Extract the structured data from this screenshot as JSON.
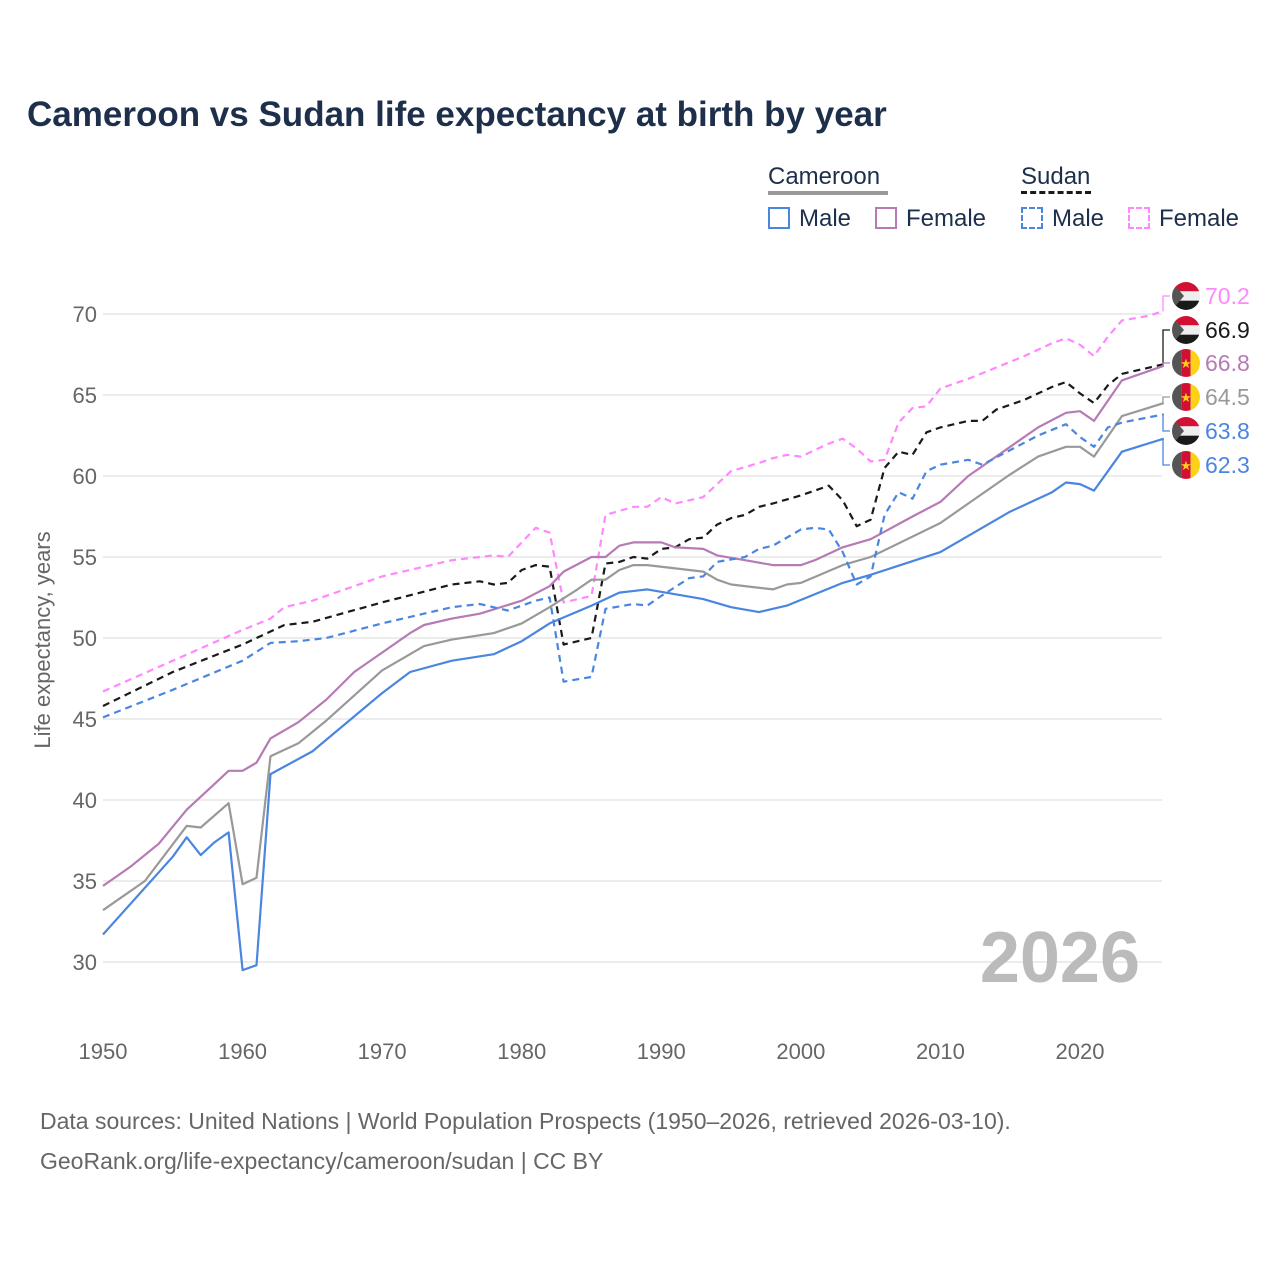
{
  "title": "Cameroon vs Sudan life expectancy at birth by year",
  "legend": {
    "groups": [
      {
        "name": "Cameroon",
        "male": "Male",
        "female": "Female"
      },
      {
        "name": "Sudan",
        "male": "Male",
        "female": "Female"
      }
    ]
  },
  "watermark_year": "2026",
  "sources": {
    "line1": "Data sources: United Nations | World Population Prospects (1950–2026, retrieved 2026-03-10).",
    "line2": "GeoRank.org/life-expectancy/cameroon/sudan | CC BY"
  },
  "colors": {
    "male": "#4a86e0",
    "female": "#b67ab5",
    "total_cameroon": "#999999",
    "total_sudan": "#1a1a1a",
    "female_sudan": "#ff88ff",
    "grid": "#e6e6e6"
  },
  "chart_data": {
    "type": "line",
    "title": "Cameroon vs Sudan life expectancy at birth by year",
    "xlabel": "",
    "ylabel": "Life expectancy, years",
    "xlim": [
      1950,
      2026
    ],
    "ylim": [
      27,
      72
    ],
    "xticks": [
      1950,
      1960,
      1970,
      1980,
      1990,
      2000,
      2010,
      2020
    ],
    "yticks": [
      30,
      35,
      40,
      45,
      50,
      55,
      60,
      65,
      70
    ],
    "grid": true,
    "legend_position": "top-right",
    "series": [
      {
        "name": "Sudan Female",
        "country": "Sudan",
        "dash": true,
        "color": "#ff88ff",
        "end_label": "70.2",
        "points": [
          [
            1950,
            46.7
          ],
          [
            1955,
            48.6
          ],
          [
            1960,
            50.5
          ],
          [
            1962,
            51.2
          ],
          [
            1963,
            51.9
          ],
          [
            1965,
            52.3
          ],
          [
            1970,
            53.8
          ],
          [
            1973,
            54.4
          ],
          [
            1975,
            54.8
          ],
          [
            1978,
            55.1
          ],
          [
            1979,
            55.0
          ],
          [
            1980,
            55.9
          ],
          [
            1981,
            56.8
          ],
          [
            1982,
            56.5
          ],
          [
            1983,
            52.2
          ],
          [
            1985,
            52.6
          ],
          [
            1986,
            57.6
          ],
          [
            1988,
            58.1
          ],
          [
            1989,
            58.1
          ],
          [
            1990,
            58.7
          ],
          [
            1991,
            58.3
          ],
          [
            1993,
            58.7
          ],
          [
            1994,
            59.5
          ],
          [
            1995,
            60.3
          ],
          [
            1997,
            60.8
          ],
          [
            1998,
            61.1
          ],
          [
            1999,
            61.3
          ],
          [
            2000,
            61.2
          ],
          [
            2002,
            62.0
          ],
          [
            2003,
            62.3
          ],
          [
            2004,
            61.7
          ],
          [
            2005,
            60.9
          ],
          [
            2006,
            61.0
          ],
          [
            2007,
            63.3
          ],
          [
            2008,
            64.2
          ],
          [
            2009,
            64.3
          ],
          [
            2010,
            65.4
          ],
          [
            2012,
            66.0
          ],
          [
            2014,
            66.7
          ],
          [
            2016,
            67.4
          ],
          [
            2018,
            68.2
          ],
          [
            2019,
            68.5
          ],
          [
            2020,
            68.1
          ],
          [
            2021,
            67.4
          ],
          [
            2022,
            68.6
          ],
          [
            2023,
            69.6
          ],
          [
            2025,
            69.9
          ],
          [
            2026,
            70.2
          ]
        ]
      },
      {
        "name": "Sudan",
        "country": "Sudan",
        "dash": true,
        "color": "#1a1a1a",
        "end_label": "66.9",
        "points": [
          [
            1950,
            45.8
          ],
          [
            1955,
            47.9
          ],
          [
            1960,
            49.6
          ],
          [
            1962,
            50.4
          ],
          [
            1963,
            50.8
          ],
          [
            1965,
            51.0
          ],
          [
            1970,
            52.2
          ],
          [
            1975,
            53.3
          ],
          [
            1977,
            53.5
          ],
          [
            1978,
            53.3
          ],
          [
            1979,
            53.4
          ],
          [
            1980,
            54.2
          ],
          [
            1981,
            54.5
          ],
          [
            1982,
            54.4
          ],
          [
            1983,
            49.6
          ],
          [
            1985,
            50.0
          ],
          [
            1986,
            54.6
          ],
          [
            1987,
            54.7
          ],
          [
            1988,
            55.0
          ],
          [
            1989,
            54.9
          ],
          [
            1990,
            55.5
          ],
          [
            1991,
            55.6
          ],
          [
            1992,
            56.1
          ],
          [
            1993,
            56.2
          ],
          [
            1994,
            57.0
          ],
          [
            1995,
            57.4
          ],
          [
            1996,
            57.6
          ],
          [
            1997,
            58.1
          ],
          [
            1998,
            58.3
          ],
          [
            2000,
            58.8
          ],
          [
            2002,
            59.4
          ],
          [
            2003,
            58.5
          ],
          [
            2004,
            56.9
          ],
          [
            2005,
            57.3
          ],
          [
            2006,
            60.5
          ],
          [
            2007,
            61.5
          ],
          [
            2008,
            61.3
          ],
          [
            2009,
            62.7
          ],
          [
            2010,
            63.0
          ],
          [
            2012,
            63.4
          ],
          [
            2013,
            63.4
          ],
          [
            2014,
            64.1
          ],
          [
            2016,
            64.7
          ],
          [
            2018,
            65.5
          ],
          [
            2019,
            65.8
          ],
          [
            2020,
            65.1
          ],
          [
            2021,
            64.5
          ],
          [
            2022,
            65.6
          ],
          [
            2023,
            66.3
          ],
          [
            2026,
            66.9
          ]
        ]
      },
      {
        "name": "Cameroon Female",
        "country": "Cameroon",
        "dash": false,
        "color": "#b67ab5",
        "end_label": "66.8",
        "points": [
          [
            1950,
            34.7
          ],
          [
            1952,
            35.9
          ],
          [
            1954,
            37.3
          ],
          [
            1956,
            39.4
          ],
          [
            1958,
            41.0
          ],
          [
            1959,
            41.8
          ],
          [
            1960,
            41.8
          ],
          [
            1961,
            42.3
          ],
          [
            1962,
            43.8
          ],
          [
            1964,
            44.8
          ],
          [
            1966,
            46.2
          ],
          [
            1968,
            47.9
          ],
          [
            1970,
            49.1
          ],
          [
            1972,
            50.3
          ],
          [
            1973,
            50.8
          ],
          [
            1975,
            51.2
          ],
          [
            1977,
            51.5
          ],
          [
            1980,
            52.3
          ],
          [
            1982,
            53.2
          ],
          [
            1983,
            54.1
          ],
          [
            1985,
            55.0
          ],
          [
            1986,
            55.0
          ],
          [
            1987,
            55.7
          ],
          [
            1988,
            55.9
          ],
          [
            1990,
            55.9
          ],
          [
            1991,
            55.6
          ],
          [
            1993,
            55.5
          ],
          [
            1994,
            55.1
          ],
          [
            1996,
            54.8
          ],
          [
            1998,
            54.5
          ],
          [
            2000,
            54.5
          ],
          [
            2001,
            54.8
          ],
          [
            2002,
            55.2
          ],
          [
            2003,
            55.6
          ],
          [
            2005,
            56.1
          ],
          [
            2008,
            57.5
          ],
          [
            2010,
            58.4
          ],
          [
            2012,
            60.0
          ],
          [
            2015,
            61.8
          ],
          [
            2017,
            63.0
          ],
          [
            2019,
            63.9
          ],
          [
            2020,
            64.0
          ],
          [
            2021,
            63.4
          ],
          [
            2023,
            65.9
          ],
          [
            2026,
            66.8
          ]
        ]
      },
      {
        "name": "Cameroon",
        "country": "Cameroon",
        "dash": false,
        "color": "#999999",
        "end_label": "64.5",
        "points": [
          [
            1950,
            33.2
          ],
          [
            1953,
            35.0
          ],
          [
            1956,
            38.4
          ],
          [
            1957,
            38.3
          ],
          [
            1959,
            39.8
          ],
          [
            1960,
            34.8
          ],
          [
            1961,
            35.2
          ],
          [
            1962,
            42.7
          ],
          [
            1964,
            43.5
          ],
          [
            1966,
            44.9
          ],
          [
            1970,
            48.0
          ],
          [
            1973,
            49.5
          ],
          [
            1975,
            49.9
          ],
          [
            1978,
            50.3
          ],
          [
            1980,
            50.9
          ],
          [
            1982,
            51.9
          ],
          [
            1984,
            53.0
          ],
          [
            1985,
            53.6
          ],
          [
            1986,
            53.6
          ],
          [
            1987,
            54.2
          ],
          [
            1988,
            54.5
          ],
          [
            1989,
            54.5
          ],
          [
            1993,
            54.1
          ],
          [
            1994,
            53.6
          ],
          [
            1995,
            53.3
          ],
          [
            1998,
            53.0
          ],
          [
            1999,
            53.3
          ],
          [
            2000,
            53.4
          ],
          [
            2003,
            54.5
          ],
          [
            2005,
            55.0
          ],
          [
            2010,
            57.1
          ],
          [
            2012,
            58.3
          ],
          [
            2015,
            60.1
          ],
          [
            2017,
            61.2
          ],
          [
            2019,
            61.8
          ],
          [
            2020,
            61.8
          ],
          [
            2021,
            61.2
          ],
          [
            2023,
            63.7
          ],
          [
            2026,
            64.5
          ]
        ]
      },
      {
        "name": "Sudan Male",
        "country": "Sudan",
        "dash": true,
        "color": "#4a86e0",
        "end_label": "63.8",
        "points": [
          [
            1950,
            45.1
          ],
          [
            1955,
            46.8
          ],
          [
            1960,
            48.6
          ],
          [
            1962,
            49.7
          ],
          [
            1964,
            49.8
          ],
          [
            1966,
            50.0
          ],
          [
            1970,
            50.9
          ],
          [
            1975,
            51.9
          ],
          [
            1977,
            52.1
          ],
          [
            1979,
            51.7
          ],
          [
            1981,
            52.3
          ],
          [
            1982,
            52.5
          ],
          [
            1983,
            47.3
          ],
          [
            1985,
            47.6
          ],
          [
            1986,
            51.8
          ],
          [
            1988,
            52.1
          ],
          [
            1989,
            52.0
          ],
          [
            1990,
            52.6
          ],
          [
            1992,
            53.7
          ],
          [
            1993,
            53.8
          ],
          [
            1994,
            54.7
          ],
          [
            1996,
            55.0
          ],
          [
            1997,
            55.5
          ],
          [
            1998,
            55.7
          ],
          [
            2000,
            56.7
          ],
          [
            2001,
            56.8
          ],
          [
            2002,
            56.7
          ],
          [
            2003,
            55.3
          ],
          [
            2004,
            53.3
          ],
          [
            2005,
            53.8
          ],
          [
            2006,
            57.6
          ],
          [
            2007,
            59.0
          ],
          [
            2008,
            58.6
          ],
          [
            2009,
            60.3
          ],
          [
            2010,
            60.7
          ],
          [
            2012,
            61.0
          ],
          [
            2013,
            60.7
          ],
          [
            2015,
            61.6
          ],
          [
            2017,
            62.5
          ],
          [
            2019,
            63.2
          ],
          [
            2020,
            62.4
          ],
          [
            2021,
            61.8
          ],
          [
            2022,
            63.0
          ],
          [
            2023,
            63.3
          ],
          [
            2026,
            63.8
          ]
        ]
      },
      {
        "name": "Cameroon Male",
        "country": "Cameroon",
        "dash": false,
        "color": "#4a86e0",
        "end_label": "62.3",
        "points": [
          [
            1950,
            31.7
          ],
          [
            1955,
            36.5
          ],
          [
            1956,
            37.7
          ],
          [
            1957,
            36.6
          ],
          [
            1958,
            37.4
          ],
          [
            1959,
            38.0
          ],
          [
            1960,
            29.5
          ],
          [
            1961,
            29.8
          ],
          [
            1962,
            41.6
          ],
          [
            1965,
            43.0
          ],
          [
            1970,
            46.6
          ],
          [
            1972,
            47.9
          ],
          [
            1975,
            48.6
          ],
          [
            1978,
            49.0
          ],
          [
            1980,
            49.8
          ],
          [
            1982,
            50.9
          ],
          [
            1985,
            52.0
          ],
          [
            1987,
            52.8
          ],
          [
            1989,
            53.0
          ],
          [
            1993,
            52.4
          ],
          [
            1995,
            51.9
          ],
          [
            1997,
            51.6
          ],
          [
            1999,
            52.0
          ],
          [
            2003,
            53.4
          ],
          [
            2005,
            53.9
          ],
          [
            2010,
            55.3
          ],
          [
            2015,
            57.8
          ],
          [
            2018,
            59.0
          ],
          [
            2019,
            59.6
          ],
          [
            2020,
            59.5
          ],
          [
            2021,
            59.1
          ],
          [
            2023,
            61.5
          ],
          [
            2026,
            62.3
          ]
        ]
      }
    ]
  }
}
